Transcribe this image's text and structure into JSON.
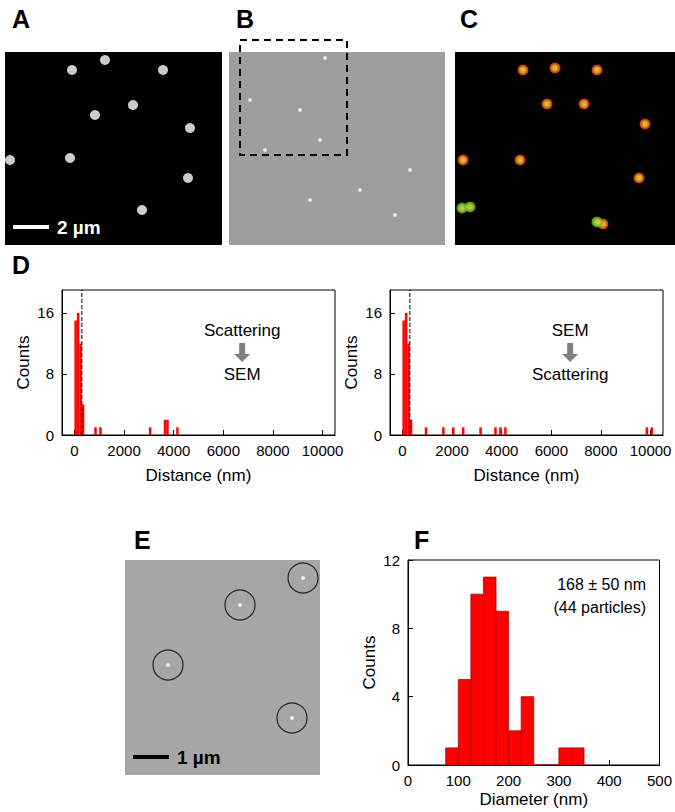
{
  "chart_data": [
    {
      "panel": "A",
      "type": "image",
      "xlim": [
        0,
        217
      ],
      "ylim": [
        0,
        193
      ],
      "tick_labels": false,
      "scale_bar": "2 µm",
      "series": [
        {
          "color": "#ffffff",
          "values": [
            [
              67,
              18
            ],
            [
              100,
              8
            ],
            [
              158,
              18
            ],
            [
              90,
              63
            ],
            [
              185,
              76
            ],
            [
              128,
              53
            ],
            [
              5,
              108
            ],
            [
              65,
              106
            ],
            [
              183,
              126
            ],
            [
              137,
              158
            ]
          ]
        }
      ]
    },
    {
      "panel": "B",
      "type": "image",
      "xlim": [
        0,
        216
      ],
      "ylim": [
        0,
        193
      ],
      "tick_labels": false,
      "series": [
        {
          "color": "#eeeeee",
          "values": [
            [
              96,
              6
            ],
            [
              21,
              48
            ],
            [
              71,
              58
            ],
            [
              91,
              88
            ],
            [
              36,
              98
            ],
            [
              181,
              118
            ],
            [
              131,
              138
            ],
            [
              81,
              148
            ],
            [
              166,
              163
            ]
          ]
        }
      ]
    },
    {
      "panel": "C",
      "type": "image",
      "xlim": [
        0,
        220
      ],
      "ylim": [
        0,
        193
      ],
      "tick_labels": false,
      "series": [
        {
          "color": "#ff2000",
          "values": [
            [
              68,
              18
            ],
            [
              100,
              16
            ],
            [
              142,
              18
            ],
            [
              92,
              52
            ],
            [
              190,
              72
            ],
            [
              129,
              52
            ],
            [
              8,
              108
            ],
            [
              65,
              108
            ],
            [
              184,
              126
            ],
            [
              148,
              172
            ]
          ]
        },
        {
          "color": "#22c022",
          "values": [
            [
              7,
              156
            ],
            [
              15,
              155
            ],
            [
              142,
              170
            ]
          ]
        }
      ]
    },
    {
      "panel": "D",
      "type": "bar",
      "x": [
        50,
        150,
        250,
        350,
        850,
        1050,
        3050,
        3650,
        3750,
        4150
      ],
      "values": [
        15,
        16,
        12,
        4,
        1,
        1,
        1,
        2,
        2,
        1
      ],
      "bin_width": 100,
      "threshold": 300,
      "color": "#ff0000",
      "annotations": [
        "Scattering",
        "SEM"
      ],
      "x_label": "Distance (nm)",
      "y_label": "Counts",
      "xlim": [
        -500,
        10500
      ],
      "xticks": [
        0,
        2000,
        4000,
        6000,
        8000,
        10000
      ],
      "ylim": [
        0,
        19
      ],
      "yticks": [
        0,
        8,
        16
      ],
      "grid": false
    },
    {
      "type": "bar",
      "x": [
        50,
        150,
        250,
        350,
        950,
        1650,
        2050,
        2450,
        3150,
        3750,
        3950,
        4150,
        9850,
        10050
      ],
      "values": [
        15,
        16,
        12,
        2,
        1,
        1,
        1,
        1,
        1,
        1,
        1,
        1,
        1,
        1
      ],
      "bin_width": 100,
      "threshold": 300,
      "color": "#ff0000",
      "annotations": [
        "SEM",
        "Scattering"
      ],
      "x_label": "Distance (nm)",
      "y_label": "Counts",
      "xlim": [
        -500,
        10500
      ],
      "xticks": [
        0,
        2000,
        4000,
        6000,
        8000,
        10000
      ],
      "ylim": [
        0,
        19
      ],
      "yticks": [
        0,
        8,
        16
      ],
      "grid": false
    },
    {
      "panel": "E",
      "type": "image",
      "xlim": [
        0,
        195
      ],
      "ylim": [
        0,
        215
      ],
      "tick_labels": false,
      "scale_bar": "1 µm",
      "series": [
        {
          "color": "#ffffff",
          "values": [
            [
              43,
              105
            ],
            [
              115,
              45
            ],
            [
              178,
              18
            ],
            [
              167,
              158
            ]
          ]
        }
      ]
    },
    {
      "panel": "F",
      "type": "histogram",
      "bins": [
        75,
        100,
        125,
        150,
        175,
        200,
        225,
        250,
        275,
        300,
        325,
        350
      ],
      "counts": [
        1,
        5,
        10,
        11,
        9,
        2,
        4,
        0,
        0,
        1,
        1
      ],
      "color": "#ff0000",
      "annotations": [
        "168 ± 50 nm",
        "(44 particles)"
      ],
      "x_label": "Diameter (nm)",
      "y_label": "Counts",
      "xlim": [
        0,
        500
      ],
      "xticks": [
        0,
        100,
        200,
        300,
        400,
        500
      ],
      "ylim": [
        0,
        12
      ],
      "yticks": [
        0,
        4,
        8,
        12
      ],
      "grid": false
    }
  ]
}
